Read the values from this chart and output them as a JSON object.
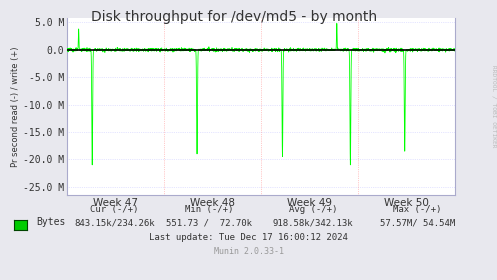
{
  "title": "Disk throughput for /dev/md5 - by month",
  "ylabel": "Pr second read (-) / write (+)",
  "plot_bg_color": "#FFFFFF",
  "grid_color_major": "#FF9999",
  "grid_color_minor": "#CCCCFF",
  "line_color": "#00FF00",
  "zero_line_color": "#000000",
  "ylim": [
    -26500000,
    5800000
  ],
  "yticks": [
    5000000,
    0,
    -5000000,
    -10000000,
    -15000000,
    -20000000,
    -25000000
  ],
  "ytick_labels": [
    "5.0 M",
    "0.0",
    "-5.0 M",
    "-10.0 M",
    "-15.0 M",
    "-20.0 M",
    "-25.0 M"
  ],
  "xtick_labels": [
    "Week 47",
    "Week 48",
    "Week 49",
    "Week 50"
  ],
  "legend_label": "Bytes",
  "legend_color": "#00CC00",
  "footer_cur": "Cur (-/+)",
  "footer_cur_val": "843.15k/234.26k",
  "footer_min": "Min (-/+)",
  "footer_min_val": "551.73 /  72.70k",
  "footer_avg": "Avg (-/+)",
  "footer_avg_val": "918.58k/342.13k",
  "footer_max": "Max (-/+)",
  "footer_max_val": "57.57M/ 54.54M",
  "footer_update": "Last update: Tue Dec 17 16:00:12 2024",
  "footer_munin": "Munin 2.0.33-1",
  "rrdtool_label": "RRDTOOL / TOBI OETIKER",
  "title_fontsize": 10,
  "axis_fontsize": 7,
  "footer_fontsize": 6.5,
  "outer_bg": "#E8E8EE"
}
